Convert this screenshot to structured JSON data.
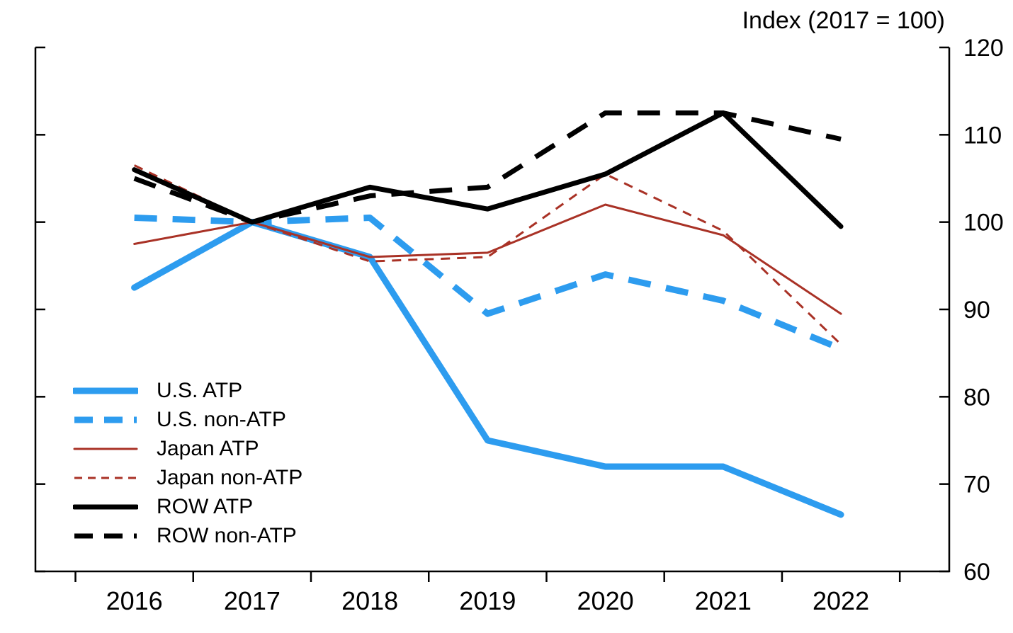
{
  "chart_data": {
    "type": "line",
    "title": "Index (2017 = 100)",
    "x": [
      2016,
      2017,
      2018,
      2019,
      2020,
      2021,
      2022
    ],
    "xlabel": "",
    "ylabel": "Index (2017 = 100)",
    "ylim": [
      60,
      120
    ],
    "yticks": [
      60,
      70,
      80,
      90,
      100,
      110,
      120
    ],
    "y_axis_side": "right",
    "grid": false,
    "legend_position": "lower-left",
    "axis_color": "#000000",
    "series": [
      {
        "name": "U.S. ATP",
        "color": "#2D9CEF",
        "dash": "solid",
        "width": 9,
        "values": [
          92.5,
          100,
          96,
          75,
          72,
          72,
          66.5
        ]
      },
      {
        "name": "U.S. non-ATP",
        "color": "#2D9CEF",
        "dash": "dashed",
        "width": 9,
        "values": [
          100.5,
          100,
          100.5,
          89.5,
          94,
          91,
          85.5
        ]
      },
      {
        "name": "Japan ATP",
        "color": "#A93226",
        "dash": "solid",
        "width": 3,
        "values": [
          97.5,
          100,
          96,
          96.5,
          102,
          98.5,
          89.5
        ]
      },
      {
        "name": "Japan non-ATP",
        "color": "#A93226",
        "dash": "dashed",
        "width": 3,
        "values": [
          106.5,
          100,
          95.5,
          96,
          105.5,
          99,
          86
        ]
      },
      {
        "name": "ROW ATP",
        "color": "#000000",
        "dash": "solid",
        "width": 7,
        "values": [
          106,
          100,
          104,
          101.5,
          105.5,
          112.5,
          99.5
        ]
      },
      {
        "name": "ROW non-ATP",
        "color": "#000000",
        "dash": "dashed",
        "width": 7,
        "values": [
          105,
          100,
          103,
          104,
          112.5,
          112.5,
          109.5
        ]
      }
    ]
  }
}
